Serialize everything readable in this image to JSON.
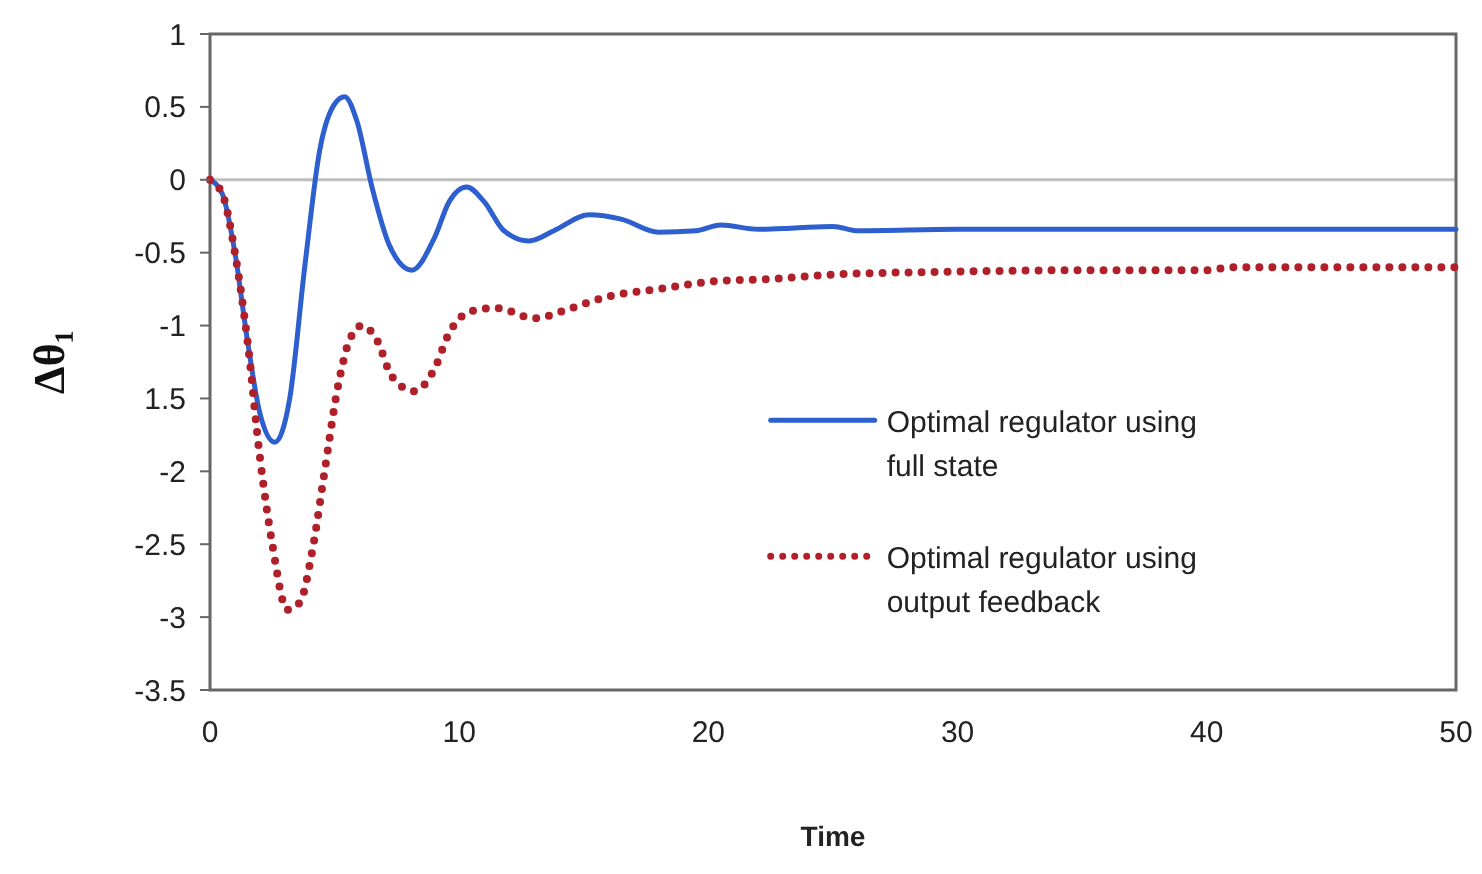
{
  "chart_data": {
    "type": "line",
    "xlabel": "Time",
    "ylabel": "Δθ₁",
    "xlim": [
      0,
      50
    ],
    "xticks": [
      0,
      10,
      20,
      30,
      40,
      50
    ],
    "ylim": [
      -3.5,
      1
    ],
    "yticks": [
      1,
      0.5,
      0,
      -0.5,
      -1,
      {
        "value": -1.5,
        "label": "1.5"
      },
      -2,
      -2.5,
      -3,
      -3.5
    ],
    "legend": "right",
    "ref_lines": [
      {
        "axis": "y",
        "value": 0,
        "color": "#bfbfbf"
      }
    ],
    "series": [
      {
        "name": "Optimal regulator using full state",
        "color": "#2e5fcf",
        "line_style": "solid",
        "x": [
          0,
          0.5,
          1,
          1.5,
          2,
          2.6,
          3.2,
          3.8,
          4.4,
          5,
          5.4,
          5.9,
          6.5,
          7.2,
          8.1,
          9,
          9.6,
          10.3,
          11,
          11.8,
          12.8,
          13.8,
          15.2,
          16.5,
          18,
          19.5,
          20.5,
          22,
          23.5,
          25,
          26,
          30,
          40,
          50
        ],
        "values": [
          0,
          -0.1,
          -0.5,
          -1.1,
          -1.6,
          -1.8,
          -1.5,
          -0.6,
          0.2,
          0.52,
          0.57,
          0.4,
          -0.05,
          -0.45,
          -0.62,
          -0.4,
          -0.15,
          -0.05,
          -0.15,
          -0.35,
          -0.42,
          -0.35,
          -0.24,
          -0.27,
          -0.36,
          -0.35,
          -0.31,
          -0.34,
          -0.33,
          -0.32,
          -0.35,
          -0.34,
          -0.34,
          -0.34
        ]
      },
      {
        "name": "Optimal regulator using output feedback",
        "color": "#b0202a",
        "line_style": "dotted",
        "x": [
          0,
          0.5,
          1,
          1.5,
          2,
          2.5,
          3.1,
          3.6,
          4.1,
          4.6,
          5.1,
          5.6,
          6.1,
          6.7,
          7.3,
          8.2,
          9,
          9.6,
          10.5,
          11.5,
          13,
          14.5,
          16,
          18,
          20,
          22.5,
          25,
          30,
          35,
          40,
          41,
          45,
          50
        ],
        "values": [
          0,
          -0.1,
          -0.5,
          -1.1,
          -1.9,
          -2.5,
          -2.95,
          -2.9,
          -2.55,
          -2,
          -1.45,
          -1.1,
          -1,
          -1.1,
          -1.35,
          -1.45,
          -1.3,
          -1.05,
          -0.9,
          -0.88,
          -0.95,
          -0.88,
          -0.8,
          -0.75,
          -0.7,
          -0.68,
          -0.65,
          -0.63,
          -0.62,
          -0.62,
          -0.6,
          -0.6,
          -0.6
        ]
      }
    ]
  }
}
